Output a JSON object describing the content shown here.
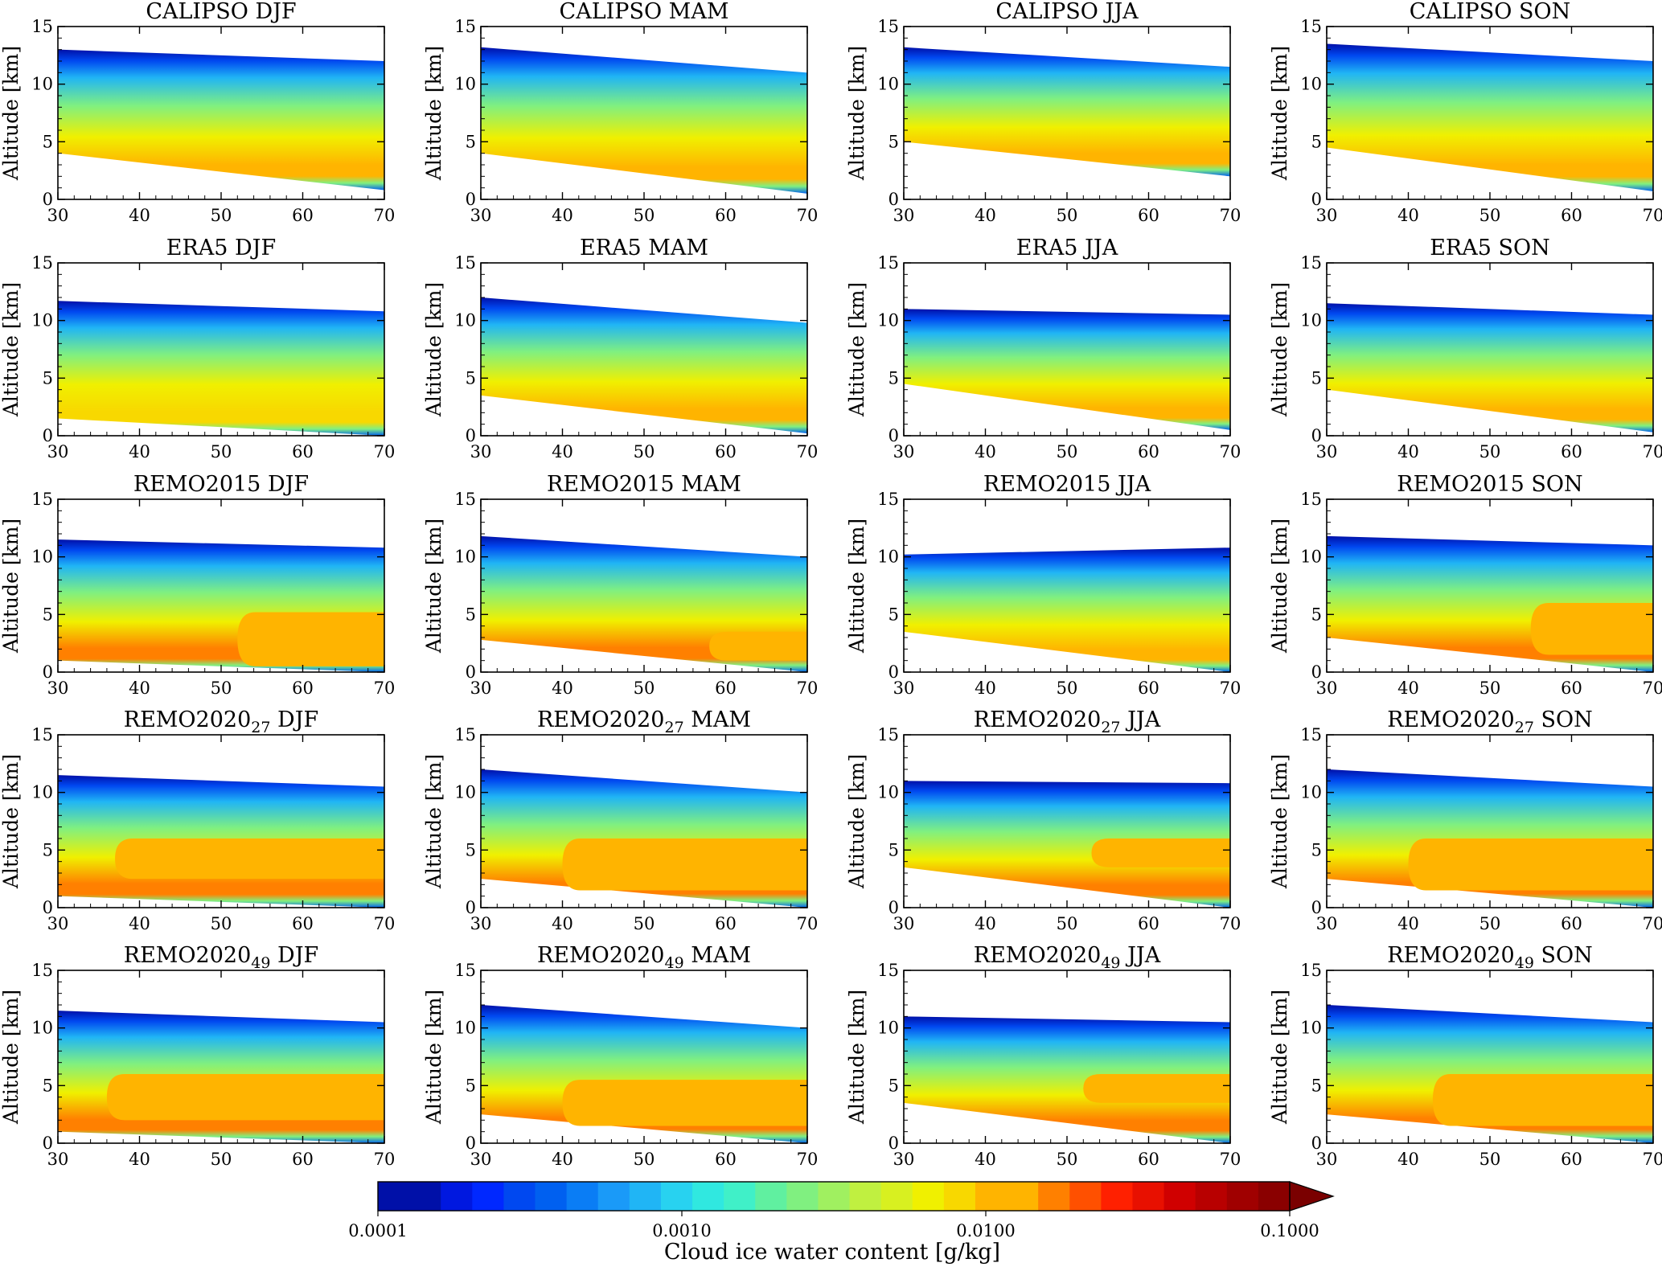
{
  "figure": {
    "ylabel": "Altitude [km]",
    "colorbar": {
      "label": "Cloud ice water content [g/kg]",
      "ticks": [
        "0.0001",
        "0.0010",
        "0.0100",
        "0.1000"
      ],
      "tick_values": [
        0.0001,
        0.001,
        0.01,
        0.1
      ],
      "scale": "log",
      "extend": "max",
      "colors": [
        "#0010a8",
        "#0010a8",
        "#0018e0",
        "#0028ff",
        "#0048f0",
        "#0060f0",
        "#0a7df5",
        "#1a9af8",
        "#20b5f5",
        "#28d2f0",
        "#30e8e0",
        "#40f0c8",
        "#60f0a0",
        "#80f080",
        "#a0f060",
        "#c0f040",
        "#d8f020",
        "#f0f000",
        "#f8d800",
        "#ffb400",
        "#ffb400",
        "#ff8000",
        "#ff5000",
        "#ff2000",
        "#e81000",
        "#d00000",
        "#b80000",
        "#a00000",
        "#8a0000"
      ]
    }
  },
  "chart_data": {
    "type": "heatmap",
    "layout": "grid 5 rows x 4 columns",
    "xlim": [
      30,
      70
    ],
    "ylim": [
      0,
      15
    ],
    "xticks": [
      "30",
      "40",
      "50",
      "60",
      "70"
    ],
    "yticks": [
      "0",
      "5",
      "10",
      "15"
    ],
    "ylabel": "Altitude [km]",
    "colorbar_label": "Cloud ice water content [g/kg]",
    "colorbar_ticks": [
      "0.0001",
      "0.0010",
      "0.0100",
      "0.1000"
    ],
    "panels": [
      {
        "source": "CALIPSO",
        "sub": "",
        "season": "DJF",
        "top": [
          13.0,
          12.0
        ],
        "bottom": [
          4.0,
          0.8
        ],
        "peak_level": 0.016,
        "core": null
      },
      {
        "source": "CALIPSO",
        "sub": "",
        "season": "MAM",
        "top": [
          13.2,
          11.0
        ],
        "bottom": [
          4.0,
          0.5
        ],
        "peak_level": 0.016,
        "core": null
      },
      {
        "source": "CALIPSO",
        "sub": "",
        "season": "JJA",
        "top": [
          13.2,
          11.5
        ],
        "bottom": [
          5.0,
          2.0
        ],
        "peak_level": 0.014,
        "core": null
      },
      {
        "source": "CALIPSO",
        "sub": "",
        "season": "SON",
        "top": [
          13.5,
          12.0
        ],
        "bottom": [
          4.5,
          0.7
        ],
        "peak_level": 0.016,
        "core": null
      },
      {
        "source": "ERA5",
        "sub": "",
        "season": "DJF",
        "top": [
          11.7,
          10.8
        ],
        "bottom": [
          1.5,
          0.0
        ],
        "peak_level": 0.01,
        "core": null
      },
      {
        "source": "ERA5",
        "sub": "",
        "season": "MAM",
        "top": [
          12.0,
          9.8
        ],
        "bottom": [
          3.5,
          0.2
        ],
        "peak_level": 0.013,
        "core": null
      },
      {
        "source": "ERA5",
        "sub": "",
        "season": "JJA",
        "top": [
          11.0,
          10.5
        ],
        "bottom": [
          4.5,
          0.5
        ],
        "peak_level": 0.014,
        "core": null
      },
      {
        "source": "ERA5",
        "sub": "",
        "season": "SON",
        "top": [
          11.5,
          10.5
        ],
        "bottom": [
          4.0,
          0.3
        ],
        "peak_level": 0.012,
        "core": null
      },
      {
        "source": "REMO2015",
        "sub": "",
        "season": "DJF",
        "top": [
          11.5,
          10.8
        ],
        "bottom": [
          1.0,
          0.0
        ],
        "peak_level": 0.02,
        "core": {
          "x": [
            52,
            70
          ],
          "y": [
            0.5,
            5.2
          ]
        }
      },
      {
        "source": "REMO2015",
        "sub": "",
        "season": "MAM",
        "top": [
          11.8,
          10.0
        ],
        "bottom": [
          2.8,
          0.0
        ],
        "peak_level": 0.018,
        "core": {
          "x": [
            58,
            70
          ],
          "y": [
            1.0,
            3.5
          ]
        }
      },
      {
        "source": "REMO2015",
        "sub": "",
        "season": "JJA",
        "top": [
          10.2,
          10.8
        ],
        "bottom": [
          3.5,
          0.0
        ],
        "peak_level": 0.014,
        "core": null
      },
      {
        "source": "REMO2015",
        "sub": "",
        "season": "SON",
        "top": [
          11.8,
          11.0
        ],
        "bottom": [
          3.0,
          0.0
        ],
        "peak_level": 0.02,
        "core": {
          "x": [
            55,
            70
          ],
          "y": [
            1.5,
            6.0
          ]
        }
      },
      {
        "source": "REMO2020",
        "sub": "27",
        "season": "DJF",
        "top": [
          11.5,
          10.5
        ],
        "bottom": [
          1.0,
          0.0
        ],
        "peak_level": 0.022,
        "core": {
          "x": [
            37,
            70
          ],
          "y": [
            2.5,
            6.0
          ]
        }
      },
      {
        "source": "REMO2020",
        "sub": "27",
        "season": "MAM",
        "top": [
          12.0,
          10.0
        ],
        "bottom": [
          2.5,
          0.0
        ],
        "peak_level": 0.022,
        "core": {
          "x": [
            40,
            70
          ],
          "y": [
            1.5,
            6.0
          ]
        }
      },
      {
        "source": "REMO2020",
        "sub": "27",
        "season": "JJA",
        "top": [
          11.0,
          10.8
        ],
        "bottom": [
          3.5,
          0.0
        ],
        "peak_level": 0.02,
        "core": {
          "x": [
            53,
            70
          ],
          "y": [
            3.5,
            6.0
          ]
        }
      },
      {
        "source": "REMO2020",
        "sub": "27",
        "season": "SON",
        "top": [
          12.0,
          10.5
        ],
        "bottom": [
          2.5,
          0.0
        ],
        "peak_level": 0.022,
        "core": {
          "x": [
            40,
            70
          ],
          "y": [
            1.5,
            6.0
          ]
        }
      },
      {
        "source": "REMO2020",
        "sub": "49",
        "season": "DJF",
        "top": [
          11.5,
          10.5
        ],
        "bottom": [
          1.0,
          0.0
        ],
        "peak_level": 0.022,
        "core": {
          "x": [
            36,
            70
          ],
          "y": [
            2.0,
            6.0
          ]
        }
      },
      {
        "source": "REMO2020",
        "sub": "49",
        "season": "MAM",
        "top": [
          12.0,
          10.0
        ],
        "bottom": [
          2.5,
          0.0
        ],
        "peak_level": 0.02,
        "core": {
          "x": [
            40,
            70
          ],
          "y": [
            1.5,
            5.5
          ]
        }
      },
      {
        "source": "REMO2020",
        "sub": "49",
        "season": "JJA",
        "top": [
          11.0,
          10.5
        ],
        "bottom": [
          3.5,
          0.0
        ],
        "peak_level": 0.02,
        "core": {
          "x": [
            52,
            70
          ],
          "y": [
            3.5,
            6.0
          ]
        }
      },
      {
        "source": "REMO2020",
        "sub": "49",
        "season": "SON",
        "top": [
          12.0,
          10.5
        ],
        "bottom": [
          2.5,
          0.0
        ],
        "peak_level": 0.022,
        "core": {
          "x": [
            43,
            70
          ],
          "y": [
            1.5,
            6.0
          ]
        }
      }
    ]
  }
}
